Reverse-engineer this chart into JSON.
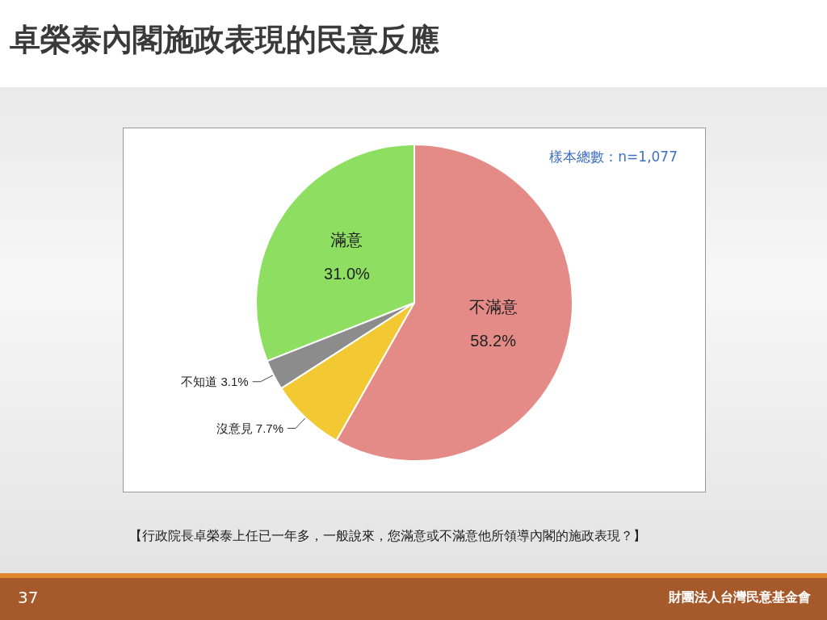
{
  "chart_data": {
    "type": "pie",
    "title": "卓榮泰內閣施政表現的民意反應",
    "categories": [
      "不滿意",
      "沒意見",
      "不知道",
      "滿意"
    ],
    "values": [
      58.2,
      7.7,
      3.1,
      31.0
    ],
    "value_labels": [
      "58.2%",
      "7.7%",
      "3.1%",
      "31.0%"
    ],
    "colors": [
      "#e48a87",
      "#f2c933",
      "#8c8c8c",
      "#8ede62"
    ],
    "annotations": [
      "樣本總數：n=1,077",
      "【行政院長卓榮泰上任已一年多，一般說來，您滿意或不滿意他所領導內閣的施政表現？】",
      "37",
      "財團法人台灣民意基金會"
    ],
    "legend": false
  }
}
